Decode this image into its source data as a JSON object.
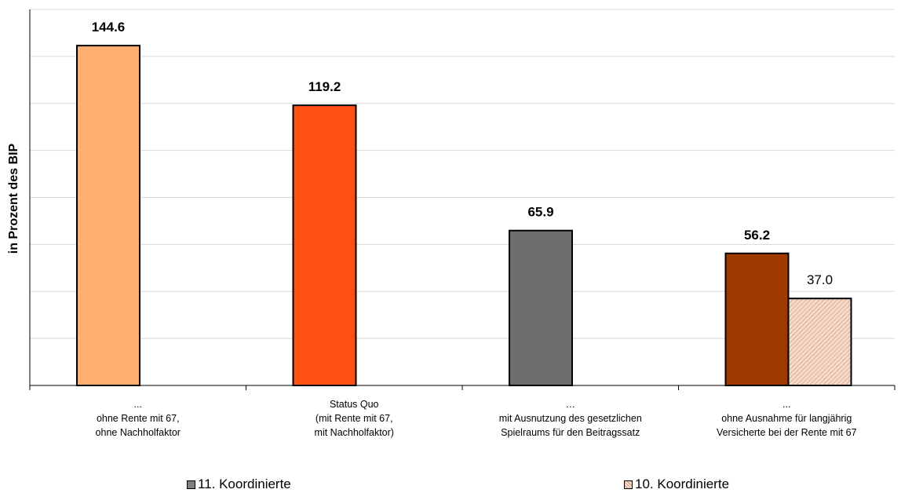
{
  "chart_data": {
    "type": "bar",
    "title": "",
    "ylabel": "in Prozent des BIP",
    "xlabel": "",
    "ylim": [
      0,
      160
    ],
    "grid": true,
    "legend_position": "bottom",
    "categories": [
      [
        "...",
        "ohne Rente mit 67,",
        "ohne Nachholfaktor"
      ],
      [
        "Status Quo",
        "(mit Rente mit 67,",
        "mit Nachholfaktor)"
      ],
      [
        "…",
        "mit Ausnutzung des gesetzlichen",
        "Spielraums für den Beitragssatz"
      ],
      [
        "...",
        "ohne Ausnahme für langjährig",
        "Versicherte bei der Rente mit 67"
      ]
    ],
    "series": [
      {
        "name": "11. Koordinierte",
        "values": [
          144.6,
          119.2,
          65.9,
          56.2
        ],
        "labels": [
          "144.6",
          "119.2",
          "65.9",
          "56.2"
        ],
        "colors": [
          "#FFB070",
          "#FF5014",
          "#6E6E6E",
          "#9E3A00"
        ]
      },
      {
        "name": "10. Koordinierte",
        "values": [
          null,
          null,
          null,
          37.0
        ],
        "labels": [
          null,
          null,
          null,
          "37.0"
        ],
        "colors": [
          "#F5D2C0",
          "#F5D2C0",
          "#F5D2C0",
          "#F5D2C0"
        ],
        "pattern": "hatched"
      }
    ],
    "legend_colors": [
      "#7F7F7F",
      "#F5D2C0"
    ]
  }
}
